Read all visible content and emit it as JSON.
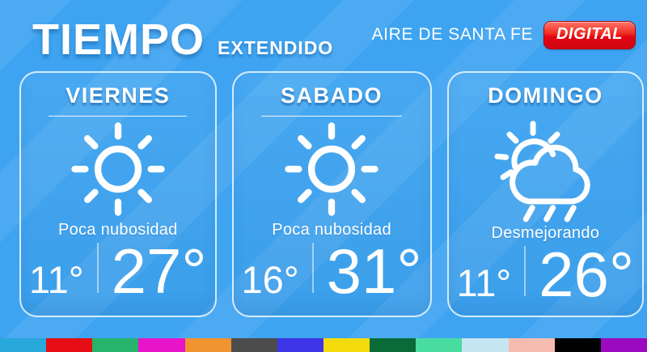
{
  "header": {
    "title": "TIEMPO",
    "subtitle": "EXTENDIDO",
    "brand": "AIRE DE SANTA FE",
    "badge": "DIGITAL"
  },
  "forecast": [
    {
      "day": "VIERNES",
      "icon": "sun-icon",
      "condition": "Poca nubosidad",
      "temp_min": "11°",
      "temp_max": "27°"
    },
    {
      "day": "SABADO",
      "icon": "sun-icon",
      "condition": "Poca nubosidad",
      "temp_min": "16°",
      "temp_max": "31°"
    },
    {
      "day": "DOMINGO",
      "icon": "sun-rain-cloud-icon",
      "condition": "Desmejorando",
      "temp_min": "11°",
      "temp_max": "26°"
    }
  ],
  "colors": {
    "background_blue": "#3ea4f1",
    "badge_red": "#e30613",
    "card_border": "#eaf5fe",
    "text": "#ffffff"
  },
  "footer": {
    "palette": [
      "#29a8db",
      "#e60d14",
      "#27b36b",
      "#e714c9",
      "#f09330",
      "#4c4c4c",
      "#3e35e9",
      "#f6db0c",
      "#0b6b38",
      "#49dca1",
      "#c5e6f1",
      "#f7bcb0",
      "#010101",
      "#9c0abf"
    ]
  }
}
